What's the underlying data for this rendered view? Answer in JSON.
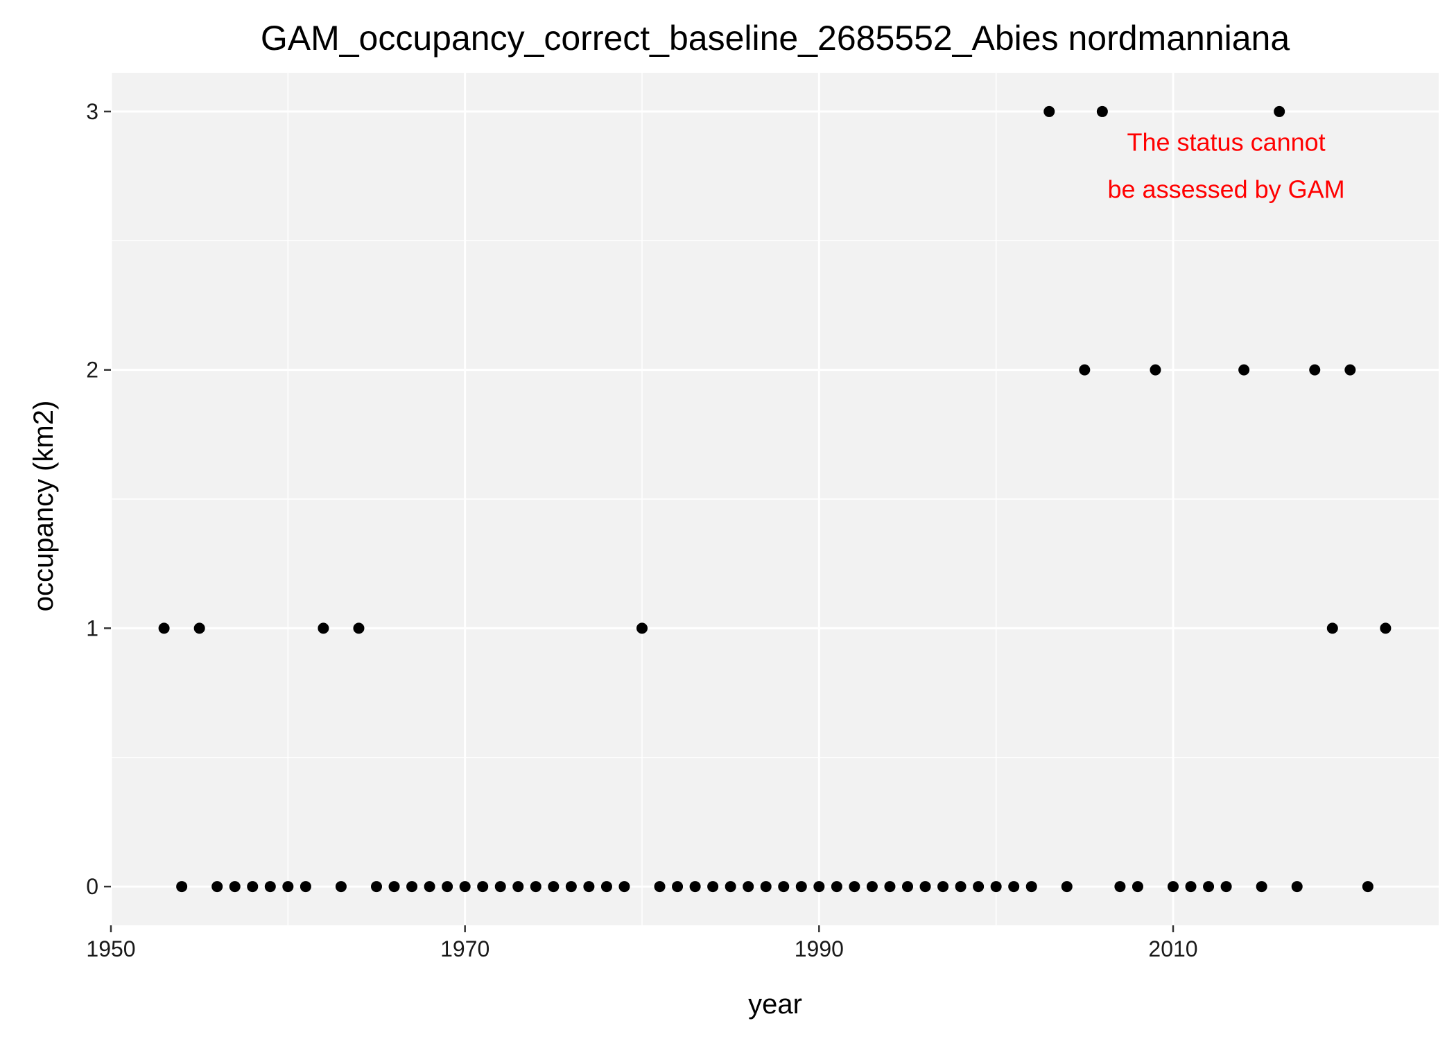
{
  "chart_data": {
    "type": "scatter",
    "title": "GAM_occupancy_correct_baseline_2685552_Abies nordmanniana",
    "xlabel": "year",
    "ylabel": "occupancy (km2)",
    "xlim": [
      1950,
      2025
    ],
    "ylim": [
      -0.15,
      3.15
    ],
    "x_ticks": [
      1950,
      1970,
      1990,
      2010
    ],
    "y_ticks": [
      0,
      1,
      2,
      3
    ],
    "grid": true,
    "panel_color": "#f2f2f2",
    "gridline_color": "#ffffff",
    "point_color": "#000000",
    "annotation": {
      "lines": [
        "The status cannot",
        "be assessed by GAM"
      ],
      "color": "#ff0000",
      "x": 2013,
      "y": 2.88
    },
    "points": [
      {
        "x": 1953,
        "y": 1
      },
      {
        "x": 1954,
        "y": 0
      },
      {
        "x": 1955,
        "y": 1
      },
      {
        "x": 1956,
        "y": 0
      },
      {
        "x": 1957,
        "y": 0
      },
      {
        "x": 1958,
        "y": 0
      },
      {
        "x": 1959,
        "y": 0
      },
      {
        "x": 1960,
        "y": 0
      },
      {
        "x": 1961,
        "y": 0
      },
      {
        "x": 1962,
        "y": 1
      },
      {
        "x": 1963,
        "y": 0
      },
      {
        "x": 1964,
        "y": 1
      },
      {
        "x": 1965,
        "y": 0
      },
      {
        "x": 1966,
        "y": 0
      },
      {
        "x": 1967,
        "y": 0
      },
      {
        "x": 1968,
        "y": 0
      },
      {
        "x": 1969,
        "y": 0
      },
      {
        "x": 1970,
        "y": 0
      },
      {
        "x": 1971,
        "y": 0
      },
      {
        "x": 1972,
        "y": 0
      },
      {
        "x": 1973,
        "y": 0
      },
      {
        "x": 1974,
        "y": 0
      },
      {
        "x": 1975,
        "y": 0
      },
      {
        "x": 1976,
        "y": 0
      },
      {
        "x": 1977,
        "y": 0
      },
      {
        "x": 1978,
        "y": 0
      },
      {
        "x": 1979,
        "y": 0
      },
      {
        "x": 1980,
        "y": 1
      },
      {
        "x": 1981,
        "y": 0
      },
      {
        "x": 1982,
        "y": 0
      },
      {
        "x": 1983,
        "y": 0
      },
      {
        "x": 1984,
        "y": 0
      },
      {
        "x": 1985,
        "y": 0
      },
      {
        "x": 1986,
        "y": 0
      },
      {
        "x": 1987,
        "y": 0
      },
      {
        "x": 1988,
        "y": 0
      },
      {
        "x": 1989,
        "y": 0
      },
      {
        "x": 1990,
        "y": 0
      },
      {
        "x": 1991,
        "y": 0
      },
      {
        "x": 1992,
        "y": 0
      },
      {
        "x": 1993,
        "y": 0
      },
      {
        "x": 1994,
        "y": 0
      },
      {
        "x": 1995,
        "y": 0
      },
      {
        "x": 1996,
        "y": 0
      },
      {
        "x": 1997,
        "y": 0
      },
      {
        "x": 1998,
        "y": 0
      },
      {
        "x": 1999,
        "y": 0
      },
      {
        "x": 2000,
        "y": 0
      },
      {
        "x": 2001,
        "y": 0
      },
      {
        "x": 2002,
        "y": 0
      },
      {
        "x": 2003,
        "y": 3
      },
      {
        "x": 2004,
        "y": 0
      },
      {
        "x": 2005,
        "y": 2
      },
      {
        "x": 2006,
        "y": 3
      },
      {
        "x": 2007,
        "y": 0
      },
      {
        "x": 2008,
        "y": 0
      },
      {
        "x": 2009,
        "y": 2
      },
      {
        "x": 2010,
        "y": 0
      },
      {
        "x": 2011,
        "y": 0
      },
      {
        "x": 2012,
        "y": 0
      },
      {
        "x": 2013,
        "y": 0
      },
      {
        "x": 2014,
        "y": 2
      },
      {
        "x": 2015,
        "y": 0
      },
      {
        "x": 2016,
        "y": 3
      },
      {
        "x": 2017,
        "y": 0
      },
      {
        "x": 2018,
        "y": 2
      },
      {
        "x": 2019,
        "y": 1
      },
      {
        "x": 2020,
        "y": 2
      },
      {
        "x": 2021,
        "y": 0
      },
      {
        "x": 2022,
        "y": 1
      }
    ]
  }
}
